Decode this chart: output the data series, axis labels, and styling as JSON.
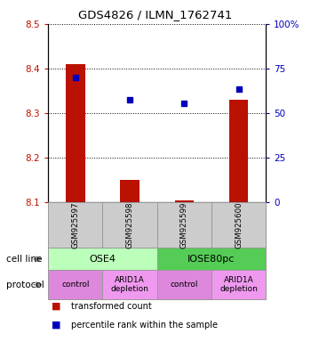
{
  "title": "GDS4826 / ILMN_1762741",
  "samples": [
    "GSM925597",
    "GSM925598",
    "GSM925599",
    "GSM925600"
  ],
  "red_values": [
    8.41,
    8.15,
    8.103,
    8.33
  ],
  "red_base": 8.1,
  "blue_values": [
    70.0,
    57.5,
    55.5,
    63.5
  ],
  "ylim_left": [
    8.1,
    8.5
  ],
  "ylim_right": [
    0,
    100
  ],
  "yticks_left": [
    8.1,
    8.2,
    8.3,
    8.4,
    8.5
  ],
  "yticks_right": [
    0,
    25,
    50,
    75,
    100
  ],
  "cell_line_groups": [
    {
      "label": "OSE4",
      "color": "#bbffbb",
      "span": [
        0,
        2
      ]
    },
    {
      "label": "IOSE80pc",
      "color": "#55cc55",
      "span": [
        2,
        4
      ]
    }
  ],
  "protocol_groups": [
    {
      "label": "control",
      "color": "#dd88dd",
      "span": [
        0,
        1
      ]
    },
    {
      "label": "ARID1A\ndepletion",
      "color": "#ee99ee",
      "span": [
        1,
        2
      ]
    },
    {
      "label": "control",
      "color": "#dd88dd",
      "span": [
        2,
        3
      ]
    },
    {
      "label": "ARID1A\ndepletion",
      "color": "#ee99ee",
      "span": [
        3,
        4
      ]
    }
  ],
  "red_color": "#bb1100",
  "blue_color": "#0000bb",
  "legend_red": "transformed count",
  "legend_blue": "percentile rank within the sample",
  "cell_line_label": "cell line",
  "protocol_label": "protocol",
  "sample_box_color": "#cccccc",
  "sample_box_edge": "#999999",
  "bar_width": 0.35
}
